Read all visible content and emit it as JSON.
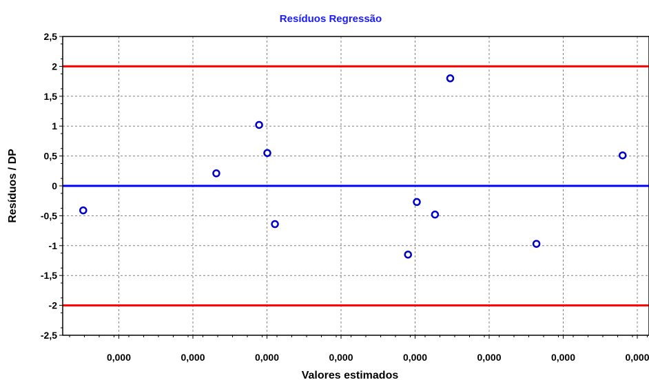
{
  "chart_data": {
    "type": "scatter",
    "title": "Resíduos Regressão",
    "xlabel": "Valores estimados",
    "ylabel": "Resíduos / DP",
    "ylim": [
      -2.5,
      2.5
    ],
    "y_ticks": [
      "2,5",
      "2",
      "1,5",
      "1",
      "0,5",
      "0",
      "-0,5",
      "-1",
      "-1,5",
      "-2",
      "-2,5"
    ],
    "x_ticks": [
      "0,000",
      "0,000",
      "0,000",
      "0,000",
      "0,000",
      "0,000",
      "0,000",
      "0,000"
    ],
    "grid": true,
    "reference_lines": [
      {
        "y": 2,
        "color": "#ff0000"
      },
      {
        "y": 0,
        "color": "#0000ff"
      },
      {
        "y": -2,
        "color": "#ff0000"
      }
    ],
    "points_note_x_relative": "x positions in fraction of x-axis extent (tick labels all print 0,000)",
    "points": [
      {
        "x": 0.035,
        "y": -0.41
      },
      {
        "x": 0.262,
        "y": 0.21
      },
      {
        "x": 0.335,
        "y": 1.02
      },
      {
        "x": 0.349,
        "y": 0.55
      },
      {
        "x": 0.362,
        "y": -0.64
      },
      {
        "x": 0.589,
        "y": -1.15
      },
      {
        "x": 0.604,
        "y": -0.27
      },
      {
        "x": 0.635,
        "y": -0.48
      },
      {
        "x": 0.661,
        "y": 1.8
      },
      {
        "x": 0.808,
        "y": -0.97
      },
      {
        "x": 0.955,
        "y": 0.51
      }
    ],
    "colors": {
      "point": "#0000cc",
      "grid": "#808080",
      "title": "#1a1aff"
    }
  }
}
